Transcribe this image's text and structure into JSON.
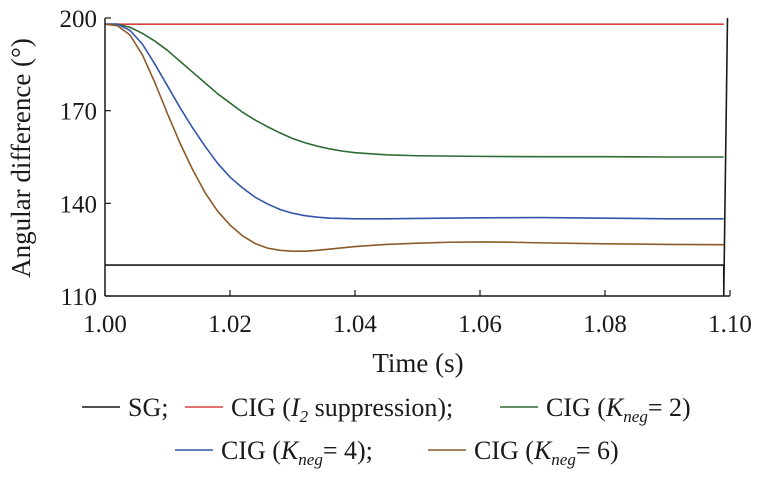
{
  "chart_data": {
    "type": "line",
    "xlabel": "Time (s)",
    "ylabel": "Angular difference (°)",
    "xlim": [
      1.0,
      1.1
    ],
    "ylim": [
      110,
      200
    ],
    "xticks": [
      1.0,
      1.02,
      1.04,
      1.06,
      1.08,
      1.1
    ],
    "xtick_labels": [
      "1.00",
      "1.02",
      "1.04",
      "1.06",
      "1.08",
      "1.10"
    ],
    "yticks": [
      110,
      140,
      170,
      200
    ],
    "ytick_labels": [
      "110",
      "140",
      "170",
      "200"
    ],
    "grid": false,
    "legend_position": "bottom",
    "series": [
      {
        "name": "SG",
        "color": "#1a1a1a",
        "x": [
          1.0,
          1.099,
          1.099,
          1.0996
        ],
        "y": [
          120,
          120,
          110,
          200
        ]
      },
      {
        "name": "CIG (I2 suppression)",
        "color": "#d9413c",
        "x": [
          1.0,
          1.099
        ],
        "y": [
          198,
          198
        ]
      },
      {
        "name": "CIG (Kneg= 2)",
        "color": "#2e6b35",
        "x": [
          1.0,
          1.002,
          1.004,
          1.006,
          1.008,
          1.01,
          1.012,
          1.014,
          1.016,
          1.018,
          1.02,
          1.022,
          1.024,
          1.026,
          1.028,
          1.03,
          1.032,
          1.034,
          1.036,
          1.038,
          1.04,
          1.045,
          1.05,
          1.06,
          1.07,
          1.08,
          1.09,
          1.099
        ],
        "y": [
          198,
          198,
          197,
          195,
          192.5,
          189.5,
          186,
          182.5,
          179,
          175.5,
          172.5,
          169.5,
          167,
          164.8,
          162.8,
          161,
          159.6,
          158.5,
          157.6,
          156.9,
          156.4,
          155.7,
          155.4,
          155.2,
          155.1,
          155.1,
          155,
          155
        ]
      },
      {
        "name": "CIG (Kneg= 4)",
        "color": "#3355a8",
        "x": [
          1.0,
          1.002,
          1.004,
          1.006,
          1.008,
          1.01,
          1.012,
          1.014,
          1.016,
          1.018,
          1.02,
          1.022,
          1.024,
          1.026,
          1.028,
          1.03,
          1.032,
          1.034,
          1.036,
          1.038,
          1.04,
          1.045,
          1.05,
          1.06,
          1.07,
          1.08,
          1.09,
          1.099
        ],
        "y": [
          198,
          198,
          196,
          191.5,
          185,
          178,
          171,
          164.5,
          158.5,
          153,
          148.5,
          145,
          142,
          139.8,
          138,
          136.8,
          136,
          135.5,
          135.2,
          135.1,
          135,
          135,
          135.1,
          135.3,
          135.4,
          135.2,
          135,
          135
        ]
      },
      {
        "name": "CIG (Kneg= 6)",
        "color": "#8b5a2b",
        "x": [
          1.0,
          1.002,
          1.004,
          1.006,
          1.008,
          1.01,
          1.012,
          1.014,
          1.016,
          1.018,
          1.02,
          1.022,
          1.024,
          1.026,
          1.028,
          1.03,
          1.032,
          1.034,
          1.036,
          1.038,
          1.04,
          1.045,
          1.05,
          1.055,
          1.06,
          1.065,
          1.07,
          1.08,
          1.09,
          1.099
        ],
        "y": [
          198,
          197.5,
          194.5,
          188,
          179,
          169,
          159.5,
          151,
          143.5,
          137.5,
          133,
          129.5,
          127,
          125.5,
          124.8,
          124.5,
          124.5,
          124.8,
          125.2,
          125.6,
          126,
          126.7,
          127.1,
          127.4,
          127.5,
          127.4,
          127.2,
          126.9,
          126.7,
          126.6
        ]
      }
    ],
    "legend": {
      "line1": [
        {
          "pre": "SG;",
          "main": "",
          "sub": "",
          "post": ""
        },
        {
          "pre": "CIG (",
          "main": "I",
          "sub": "2",
          "post": " suppression);"
        },
        {
          "pre": "CIG (",
          "main": "K",
          "sub": "neg",
          "post": "= 2)"
        }
      ],
      "line2": [
        {
          "pre": "CIG (",
          "main": "K",
          "sub": "neg",
          "post": "= 4);"
        },
        {
          "pre": "CIG (",
          "main": "K",
          "sub": "neg",
          "post": "= 6)"
        }
      ]
    }
  }
}
